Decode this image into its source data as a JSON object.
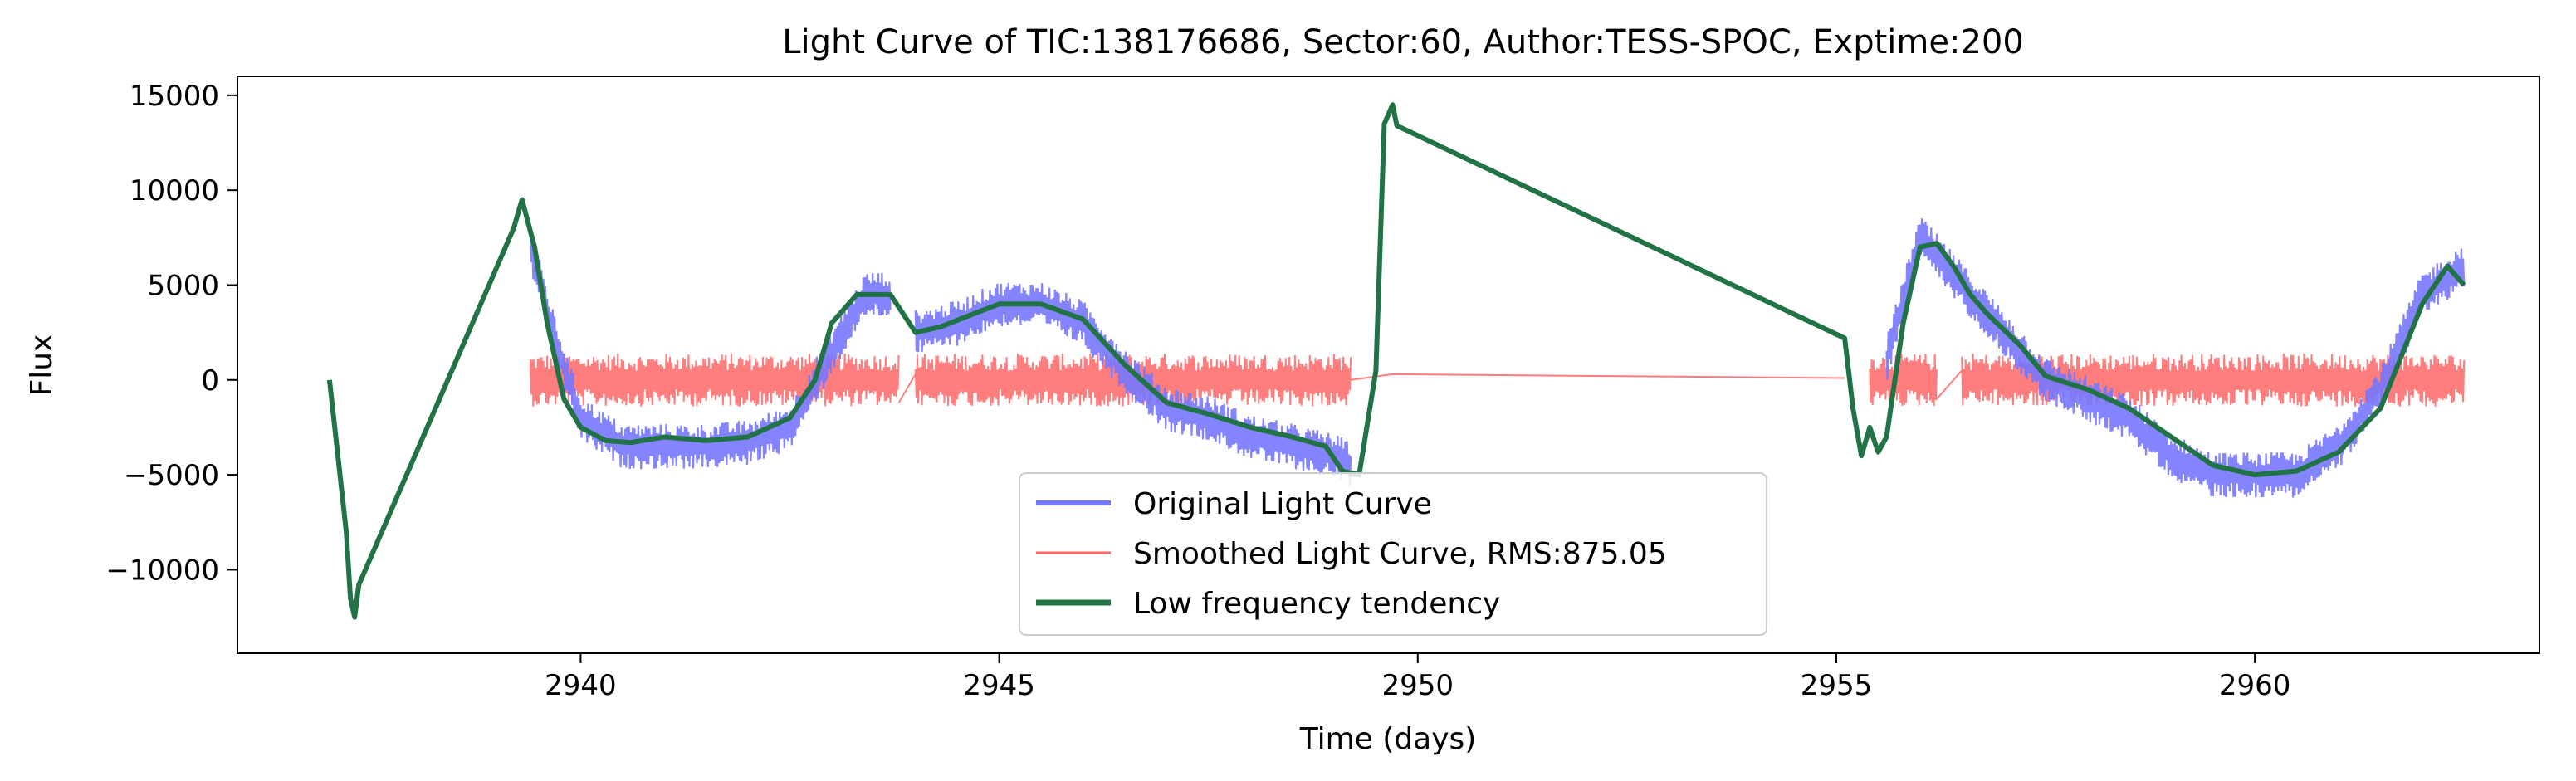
{
  "chart_data": {
    "type": "line",
    "title": "Light Curve of TIC:138176686, Sector:60, Author:TESS-SPOC, Exptime:200",
    "xlabel": "Time (days)",
    "ylabel": "Flux",
    "xlim": [
      2935.9,
      2963.4
    ],
    "ylim": [
      -14400,
      16000
    ],
    "xticks": [
      2940,
      2945,
      2950,
      2955,
      2960
    ],
    "xtick_labels": [
      "2940",
      "2945",
      "2950",
      "2955",
      "2960"
    ],
    "yticks": [
      -10000,
      -5000,
      0,
      5000,
      10000,
      15000
    ],
    "ytick_labels": [
      "−10000",
      "−5000",
      "0",
      "5000",
      "10000",
      "15000"
    ],
    "grid": false,
    "legend_position": "lower-center",
    "series": [
      {
        "name": "Original Light Curve",
        "color": "#7777ff",
        "style": "noisy-band",
        "noise_amplitude": 1200,
        "segments": [
          [
            [
              2939.4,
              7000
            ],
            [
              2939.7,
              2000
            ],
            [
              2940.0,
              -2000
            ],
            [
              2940.5,
              -3500
            ],
            [
              2941.0,
              -3500
            ],
            [
              2941.5,
              -3500
            ],
            [
              2942.0,
              -3300
            ],
            [
              2942.5,
              -2500
            ],
            [
              2943.0,
              1500
            ],
            [
              2943.4,
              4500
            ],
            [
              2943.7,
              4500
            ]
          ],
          [
            [
              2944.0,
              2500
            ],
            [
              2944.5,
              3000
            ],
            [
              2945.0,
              4000
            ],
            [
              2945.5,
              4000
            ],
            [
              2946.0,
              3000
            ],
            [
              2946.5,
              500
            ],
            [
              2947.0,
              -1500
            ],
            [
              2947.5,
              -2000
            ],
            [
              2948.0,
              -3000
            ],
            [
              2948.5,
              -3500
            ],
            [
              2949.0,
              -4000
            ],
            [
              2949.2,
              -4500
            ]
          ],
          [
            [
              2955.6,
              1000
            ],
            [
              2956.0,
              7500
            ],
            [
              2956.5,
              5000
            ],
            [
              2957.0,
              2500
            ],
            [
              2957.5,
              0
            ],
            [
              2958.0,
              -1000
            ],
            [
              2958.5,
              -2000
            ],
            [
              2959.0,
              -4000
            ],
            [
              2959.5,
              -5000
            ],
            [
              2960.0,
              -5000
            ],
            [
              2960.5,
              -5000
            ],
            [
              2961.0,
              -3500
            ],
            [
              2961.5,
              -500
            ],
            [
              2962.0,
              4500
            ],
            [
              2962.5,
              6000
            ]
          ]
        ]
      },
      {
        "name": "Smoothed Light Curve, RMS:875.05",
        "color": "#ff6666",
        "style": "noisy-band",
        "noise_amplitude": 1400,
        "segments": [
          [
            [
              2939.4,
              0
            ],
            [
              2943.8,
              0
            ]
          ],
          [
            [
              2943.8,
              -1200
            ],
            [
              2944.0,
              300
            ]
          ],
          [
            [
              2944.0,
              0
            ],
            [
              2949.2,
              0
            ]
          ],
          [
            [
              2949.2,
              0
            ],
            [
              2949.7,
              300
            ],
            [
              2955.1,
              100
            ]
          ],
          [
            [
              2955.4,
              0
            ],
            [
              2956.2,
              0
            ]
          ],
          [
            [
              2956.2,
              -1000
            ],
            [
              2956.5,
              500
            ]
          ],
          [
            [
              2956.5,
              0
            ],
            [
              2962.5,
              0
            ]
          ]
        ]
      },
      {
        "name": "Low frequency tendency",
        "color": "#217346",
        "style": "line",
        "points": [
          [
            2937.0,
            0
          ],
          [
            2937.1,
            -4000
          ],
          [
            2937.2,
            -8000
          ],
          [
            2937.25,
            -11500
          ],
          [
            2937.3,
            -12500
          ],
          [
            2937.35,
            -10800
          ],
          [
            2939.2,
            8000
          ],
          [
            2939.3,
            9500
          ],
          [
            2939.45,
            7000
          ],
          [
            2939.6,
            3000
          ],
          [
            2939.8,
            -1000
          ],
          [
            2940.0,
            -2500
          ],
          [
            2940.3,
            -3200
          ],
          [
            2940.6,
            -3300
          ],
          [
            2941.0,
            -3000
          ],
          [
            2941.5,
            -3200
          ],
          [
            2942.0,
            -3000
          ],
          [
            2942.5,
            -2000
          ],
          [
            2942.8,
            0
          ],
          [
            2943.0,
            3000
          ],
          [
            2943.3,
            4500
          ],
          [
            2943.7,
            4500
          ],
          [
            2944.0,
            2500
          ],
          [
            2944.3,
            2800
          ],
          [
            2944.7,
            3500
          ],
          [
            2945.0,
            4000
          ],
          [
            2945.5,
            4000
          ],
          [
            2946.0,
            3200
          ],
          [
            2946.5,
            800
          ],
          [
            2947.0,
            -1200
          ],
          [
            2947.5,
            -1800
          ],
          [
            2948.0,
            -2500
          ],
          [
            2948.5,
            -3000
          ],
          [
            2948.9,
            -3500
          ],
          [
            2949.1,
            -4800
          ],
          [
            2949.3,
            -5000
          ],
          [
            2949.5,
            500
          ],
          [
            2949.6,
            13500
          ],
          [
            2949.7,
            14500
          ],
          [
            2949.75,
            13400
          ],
          [
            2955.1,
            2200
          ],
          [
            2955.2,
            -1500
          ],
          [
            2955.3,
            -4000
          ],
          [
            2955.4,
            -2500
          ],
          [
            2955.5,
            -3800
          ],
          [
            2955.6,
            -3000
          ],
          [
            2955.8,
            3000
          ],
          [
            2956.0,
            7000
          ],
          [
            2956.2,
            7200
          ],
          [
            2956.4,
            6000
          ],
          [
            2956.6,
            4500
          ],
          [
            2956.8,
            3500
          ],
          [
            2957.2,
            1800
          ],
          [
            2957.5,
            200
          ],
          [
            2958.0,
            -500
          ],
          [
            2958.5,
            -1500
          ],
          [
            2959.0,
            -3000
          ],
          [
            2959.5,
            -4500
          ],
          [
            2960.0,
            -5000
          ],
          [
            2960.5,
            -4800
          ],
          [
            2961.0,
            -3800
          ],
          [
            2961.5,
            -1500
          ],
          [
            2962.0,
            4000
          ],
          [
            2962.3,
            6000
          ],
          [
            2962.5,
            5000
          ]
        ]
      }
    ]
  }
}
